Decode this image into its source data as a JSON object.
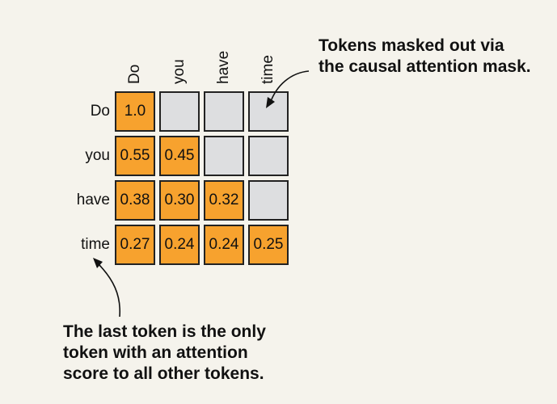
{
  "tokens": [
    "Do",
    "you",
    "have",
    "time"
  ],
  "weights": [
    [
      "1.0",
      null,
      null,
      null
    ],
    [
      "0.55",
      "0.45",
      null,
      null
    ],
    [
      "0.38",
      "0.30",
      "0.32",
      null
    ],
    [
      "0.27",
      "0.24",
      "0.24",
      "0.25"
    ]
  ],
  "annotations": {
    "mask_note": [
      "Tokens masked out via",
      "the causal attention mask."
    ],
    "last_token_note": [
      "The last token is the only",
      "token with an attention",
      "score to all other tokens."
    ]
  },
  "colors": {
    "active": "#f7a22e",
    "masked": "#dddee0",
    "background": "#f5f3ec"
  }
}
